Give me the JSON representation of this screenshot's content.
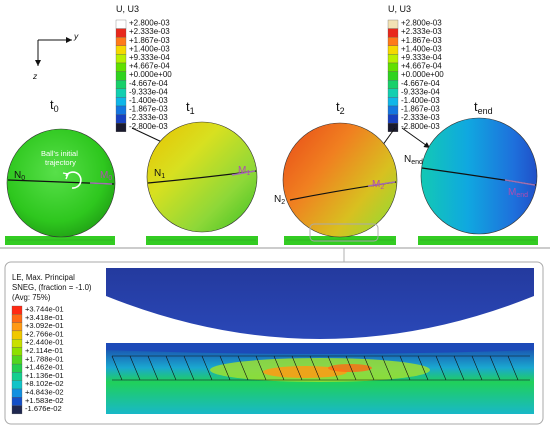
{
  "axes": {
    "y_label": "y",
    "z_label": "z"
  },
  "legend_u3_left": {
    "title": "U, U3",
    "values": [
      "+2.800e-03",
      "+2.333e-03",
      "+1.867e-03",
      "+1.400e-03",
      "+9.333e-04",
      "+4.667e-04",
      "+0.000e+00",
      "-4.667e-04",
      "-9.333e-04",
      "-1.400e-03",
      "-1.867e-03",
      "-2.333e-03",
      "-2.800e-03"
    ],
    "colors": [
      "#ffffff",
      "#e8281c",
      "#ff7a1a",
      "#f5d800",
      "#b8f000",
      "#60e000",
      "#2fd31f",
      "#18d06a",
      "#12cfb0",
      "#0fb6e8",
      "#1476e0",
      "#1840c0",
      "#1a1a2e"
    ]
  },
  "legend_u3_right": {
    "title": "U, U3",
    "values": [
      "+2.800e-03",
      "+2.333e-03",
      "+1.867e-03",
      "+1.400e-03",
      "+9.333e-04",
      "+4.667e-04",
      "+0.000e+00",
      "-4.667e-04",
      "-9.333e-04",
      "-1.400e-03",
      "-1.867e-03",
      "-2.333e-03",
      "-2.800e-03"
    ],
    "colors": [
      "#f2e2b4",
      "#e8281c",
      "#ff7a1a",
      "#f5d800",
      "#b8f000",
      "#60e000",
      "#2fd31f",
      "#18d06a",
      "#12cfb0",
      "#0fb6e8",
      "#1476e0",
      "#1840c0",
      "#1a1a2e"
    ]
  },
  "time_labels": [
    {
      "base": "t",
      "sub": "0"
    },
    {
      "base": "t",
      "sub": "1"
    },
    {
      "base": "t",
      "sub": "2"
    },
    {
      "base": "t",
      "sub": "end"
    }
  ],
  "point_labels": {
    "n0": {
      "base": "N",
      "sub": "0"
    },
    "m0": {
      "base": "M",
      "sub": "0"
    },
    "n1": {
      "base": "N",
      "sub": "1"
    },
    "m1": {
      "base": "M",
      "sub": "1"
    },
    "n2": {
      "base": "N",
      "sub": "2"
    },
    "m2": {
      "base": "M",
      "sub": "2"
    },
    "nend": {
      "base": "N",
      "sub": "end"
    },
    "mend": {
      "base": "M",
      "sub": "end"
    }
  },
  "trajectory_annotation": [
    "Ball's initial",
    "trajectory"
  ],
  "strain_legend": {
    "title": [
      "LE, Max. Principal",
      "SNEG, (fraction = -1.0)",
      "(Avg: 75%)"
    ],
    "values": [
      "+3.744e-01",
      "+3.418e-01",
      "+3.092e-01",
      "+2.766e-01",
      "+2.440e-01",
      "+2.114e-01",
      "+1.788e-01",
      "+1.462e-01",
      "+1.136e-01",
      "+8.102e-02",
      "+4.843e-02",
      "+1.583e-02",
      "-1.676e-02"
    ],
    "colors": [
      "#ff2a14",
      "#ff6a14",
      "#ff9a14",
      "#f0c800",
      "#c8e000",
      "#8ee000",
      "#52d620",
      "#24cf50",
      "#14cf90",
      "#12c4c8",
      "#1290e0",
      "#1450c8",
      "#202850"
    ]
  },
  "colors": {
    "ball_stroke": "#333333",
    "ground": "#33cc22",
    "grid": "#2e9a22",
    "callout_border": "#aaaaaa"
  }
}
